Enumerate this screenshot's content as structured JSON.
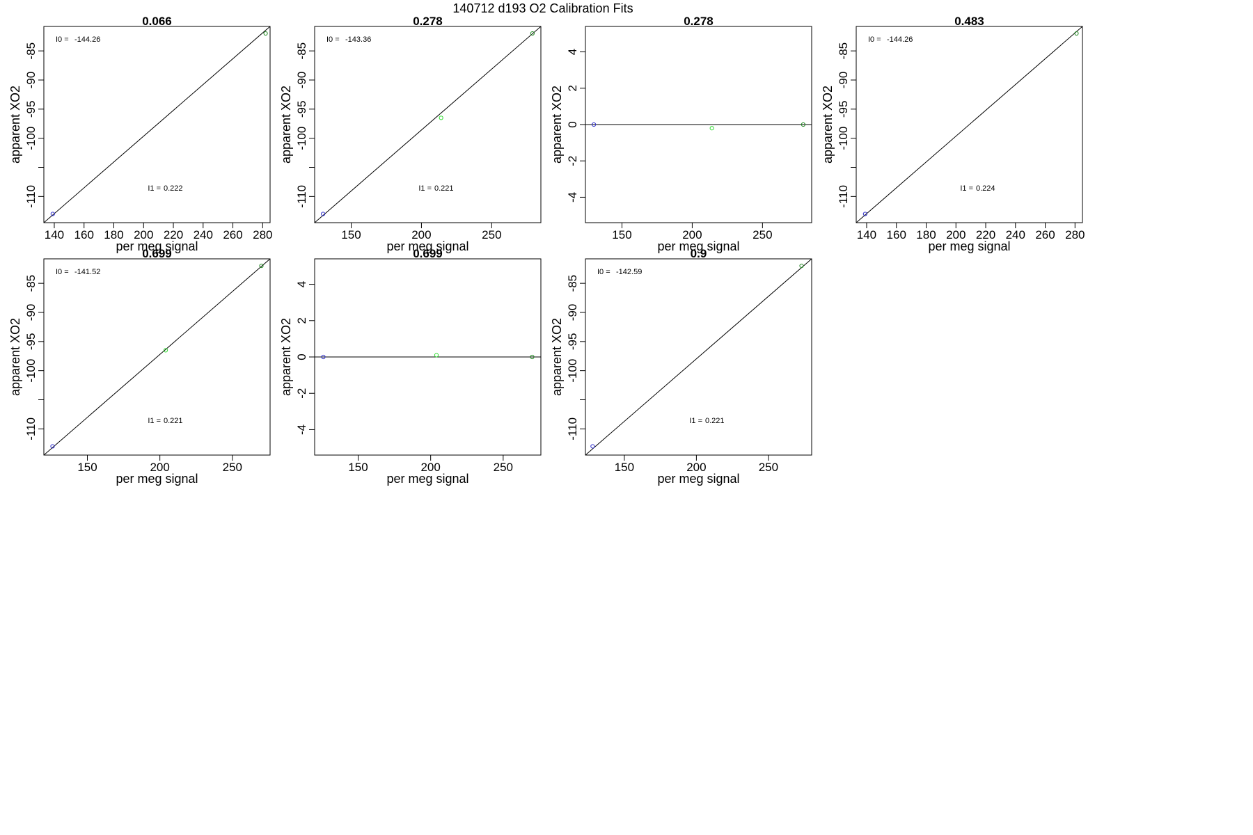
{
  "figure_title": "140712   d193   O2 Calibration Fits",
  "chart_data": [
    {
      "type": "scatter",
      "title": "0.066",
      "xlabel": "per meg signal",
      "ylabel": "apparent XO2",
      "xlim": [
        133,
        285
      ],
      "ylim": [
        -114.5,
        -80.8
      ],
      "xticks": [
        140,
        160,
        180,
        200,
        220,
        240,
        260,
        280
      ],
      "yticks": [
        -110,
        -105,
        -100,
        -95,
        -90,
        -85
      ],
      "ytick_labels": [
        "-110",
        "",
        "-100",
        "-95",
        "-90",
        "-85"
      ],
      "points": [
        {
          "x": 139,
          "y": -113,
          "color": "#3333cc"
        },
        {
          "x": 282,
          "y": -82,
          "color": "#228822"
        }
      ],
      "line": [
        [
          133,
          -114.5
        ],
        [
          285,
          -80.8
        ]
      ],
      "annotations": {
        "i0_label": "I0 =",
        "i0_value": "-144.26",
        "i1_label": "I1 =",
        "i1_value": "0.222"
      }
    },
    {
      "type": "scatter",
      "title": "0.278",
      "xlabel": "per meg signal",
      "ylabel": "apparent XO2",
      "xlim": [
        124,
        285
      ],
      "ylim": [
        -114.5,
        -80.8
      ],
      "xticks": [
        150,
        200,
        250
      ],
      "yticks": [
        -110,
        -105,
        -100,
        -95,
        -90,
        -85
      ],
      "ytick_labels": [
        "-110",
        "",
        "-100",
        "-95",
        "-90",
        "-85"
      ],
      "points": [
        {
          "x": 130,
          "y": -113,
          "color": "#3333cc"
        },
        {
          "x": 214,
          "y": -96.5,
          "color": "#33dd33"
        },
        {
          "x": 279,
          "y": -82,
          "color": "#228822"
        }
      ],
      "line": [
        [
          124,
          -114.5
        ],
        [
          285,
          -80.8
        ]
      ],
      "annotations": {
        "i0_label": "I0 =",
        "i0_value": "-143.36",
        "i1_label": "I1 =",
        "i1_value": "0.221"
      }
    },
    {
      "type": "scatter",
      "title": "0.278",
      "xlabel": "per meg signal",
      "ylabel": "apparent XO2",
      "xlim": [
        124,
        285
      ],
      "ylim": [
        -5.4,
        5.4
      ],
      "xticks": [
        150,
        200,
        250
      ],
      "yticks": [
        -4,
        -2,
        0,
        2,
        4
      ],
      "ytick_labels": [
        "-4",
        "-2",
        "0",
        "2",
        "4"
      ],
      "points": [
        {
          "x": 130,
          "y": 0,
          "color": "#3333cc"
        },
        {
          "x": 214,
          "y": -0.2,
          "color": "#33dd33"
        },
        {
          "x": 279,
          "y": 0,
          "color": "#228822"
        }
      ],
      "line": [
        [
          124,
          0
        ],
        [
          285,
          0
        ]
      ],
      "annotations": null
    },
    {
      "type": "scatter",
      "title": "0.483",
      "xlabel": "per meg signal",
      "ylabel": "apparent XO2",
      "xlim": [
        133,
        285
      ],
      "ylim": [
        -114.5,
        -80.8
      ],
      "xticks": [
        140,
        160,
        180,
        200,
        220,
        240,
        260,
        280
      ],
      "yticks": [
        -110,
        -105,
        -100,
        -95,
        -90,
        -85
      ],
      "ytick_labels": [
        "-110",
        "",
        "-100",
        "-95",
        "-90",
        "-85"
      ],
      "points": [
        {
          "x": 139,
          "y": -113,
          "color": "#3333cc"
        },
        {
          "x": 281,
          "y": -82,
          "color": "#228822"
        }
      ],
      "line": [
        [
          133,
          -114.5
        ],
        [
          285,
          -80.8
        ]
      ],
      "annotations": {
        "i0_label": "I0 =",
        "i0_value": "-144.26",
        "i1_label": "I1 =",
        "i1_value": "0.224"
      }
    },
    {
      "type": "scatter",
      "title": "0.699",
      "xlabel": "per meg signal",
      "ylabel": "apparent XO2",
      "xlim": [
        120,
        276
      ],
      "ylim": [
        -114.5,
        -80.8
      ],
      "xticks": [
        150,
        200,
        250
      ],
      "yticks": [
        -110,
        -105,
        -100,
        -95,
        -90,
        -85
      ],
      "ytick_labels": [
        "-110",
        "",
        "-100",
        "-95",
        "-90",
        "-85"
      ],
      "points": [
        {
          "x": 126,
          "y": -113,
          "color": "#3333cc"
        },
        {
          "x": 204,
          "y": -96.5,
          "color": "#33dd33"
        },
        {
          "x": 270,
          "y": -82,
          "color": "#228822"
        }
      ],
      "line": [
        [
          120,
          -114.5
        ],
        [
          276,
          -80.8
        ]
      ],
      "annotations": {
        "i0_label": "I0 =",
        "i0_value": "-141.52",
        "i1_label": "I1 =",
        "i1_value": "0.221"
      }
    },
    {
      "type": "scatter",
      "title": "0.699",
      "xlabel": "per meg signal",
      "ylabel": "apparent XO2",
      "xlim": [
        120,
        276
      ],
      "ylim": [
        -5.4,
        5.4
      ],
      "xticks": [
        150,
        200,
        250
      ],
      "yticks": [
        -4,
        -2,
        0,
        2,
        4
      ],
      "ytick_labels": [
        "-4",
        "-2",
        "0",
        "2",
        "4"
      ],
      "points": [
        {
          "x": 126,
          "y": 0,
          "color": "#3333cc"
        },
        {
          "x": 204,
          "y": 0.1,
          "color": "#33dd33"
        },
        {
          "x": 270,
          "y": 0,
          "color": "#228822"
        }
      ],
      "line": [
        [
          120,
          0
        ],
        [
          276,
          0
        ]
      ],
      "annotations": null
    },
    {
      "type": "scatter",
      "title": "0.9",
      "xlabel": "per meg signal",
      "ylabel": "apparent XO2",
      "xlim": [
        123,
        280
      ],
      "ylim": [
        -114.5,
        -80.8
      ],
      "xticks": [
        150,
        200,
        250
      ],
      "yticks": [
        -110,
        -105,
        -100,
        -95,
        -90,
        -85
      ],
      "ytick_labels": [
        "-110",
        "",
        "-100",
        "-95",
        "-90",
        "-85"
      ],
      "points": [
        {
          "x": 128,
          "y": -113,
          "color": "#3333cc"
        },
        {
          "x": 273,
          "y": -82,
          "color": "#228822"
        }
      ],
      "line": [
        [
          123,
          -114.5
        ],
        [
          280,
          -80.8
        ]
      ],
      "annotations": {
        "i0_label": "I0 =",
        "i0_value": "-142.59",
        "i1_label": "I1 =",
        "i1_value": "0.221"
      }
    }
  ]
}
